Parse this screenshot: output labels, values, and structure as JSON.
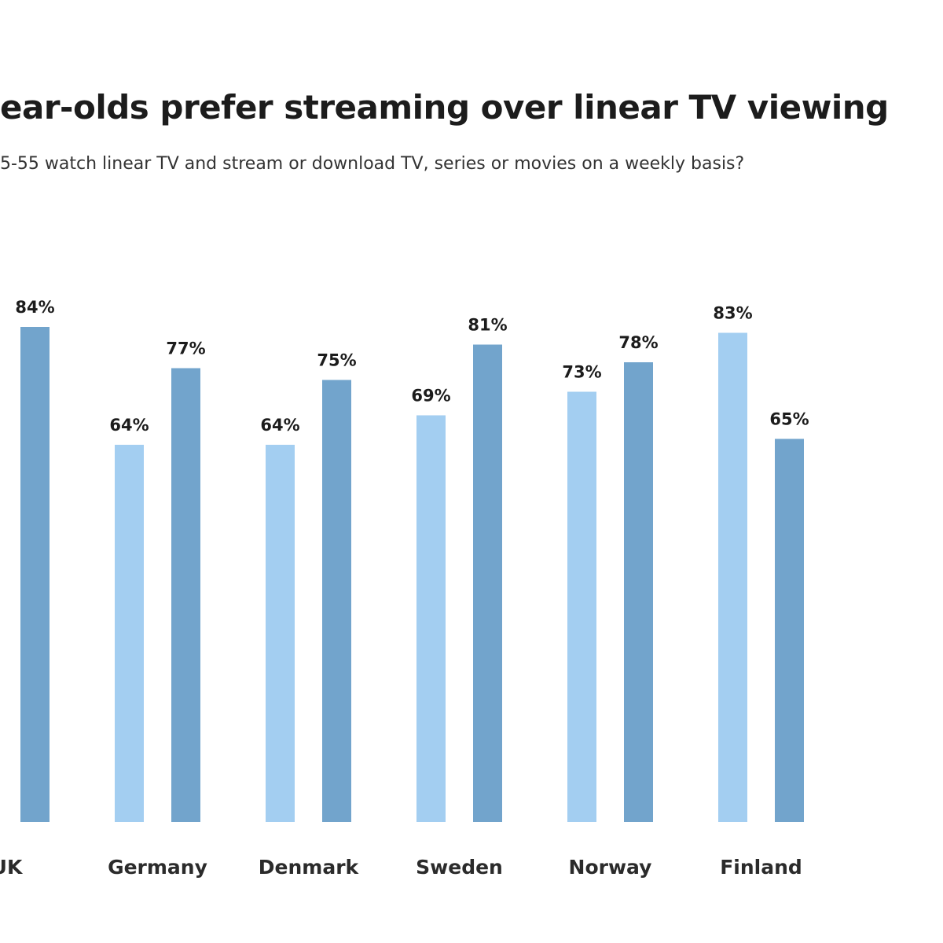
{
  "title": "ear-olds prefer streaming over linear TV viewing",
  "subtitle": "5-55 watch linear TV and stream or download TV, series or movies on a weekly basis?",
  "colors": {
    "linear": "#a3cef1",
    "streaming": "#72a4cc",
    "text": "#1c1c1c"
  },
  "chart_data": {
    "type": "bar",
    "title": "ear-olds prefer streaming over linear TV viewing",
    "subtitle": "5-55 watch linear TV and stream or download TV, series or movies on a weekly basis?",
    "categories": [
      "UK",
      "Germany",
      "Denmark",
      "Sweden",
      "Norway",
      "Finland"
    ],
    "value_suffix": "%",
    "series": [
      {
        "values": [
          null,
          64,
          64,
          69,
          73,
          83
        ]
      },
      {
        "values": [
          84,
          77,
          75,
          81,
          78,
          65
        ]
      }
    ],
    "ylim": [
      0,
      100
    ],
    "grid": false,
    "legend": "none",
    "xlabel": "",
    "ylabel": ""
  }
}
